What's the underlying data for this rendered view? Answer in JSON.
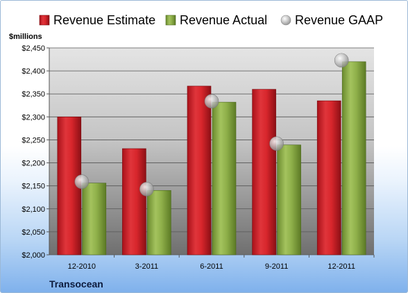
{
  "chart_data": {
    "type": "bar",
    "title": "",
    "ylabel": "$millions",
    "xlabel": "",
    "footer": "Transocean",
    "ylim": [
      2000,
      2450
    ],
    "ytick_step": 50,
    "ytick_labels": [
      "$2,000",
      "$2,050",
      "$2,100",
      "$2,150",
      "$2,200",
      "$2,250",
      "$2,300",
      "$2,350",
      "$2,400",
      "$2,450"
    ],
    "categories": [
      "12-2010",
      "3-2011",
      "6-2011",
      "9-2011",
      "12-2011"
    ],
    "legend_position": "top",
    "grid": true,
    "series": [
      {
        "name": "Revenue Estimate",
        "kind": "bar",
        "color": "#d8262c",
        "values": [
          2300,
          2231,
          2367,
          2360,
          2335
        ]
      },
      {
        "name": "Revenue Actual",
        "kind": "bar",
        "color": "#8fb04a",
        "values": [
          2156,
          2140,
          2332,
          2239,
          2420
        ]
      },
      {
        "name": "Revenue GAAP",
        "kind": "marker",
        "color": "#b8b8b8",
        "values": [
          2159,
          2143,
          2334,
          2242,
          2423
        ]
      }
    ]
  }
}
